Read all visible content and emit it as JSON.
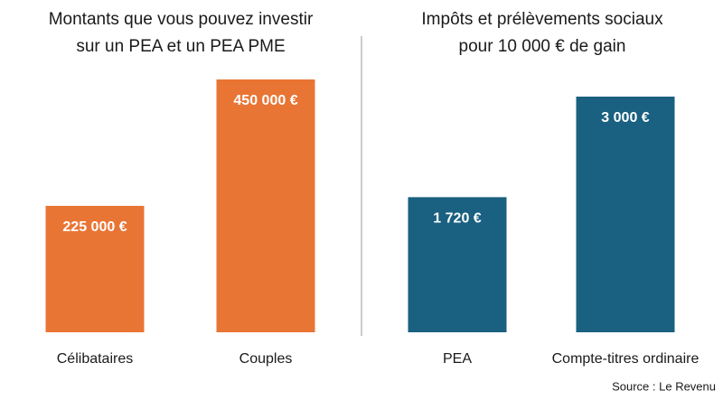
{
  "chart_data": [
    {
      "type": "bar",
      "title": [
        "Montants que vous pouvez investir",
        "sur un PEA et un PEA PME"
      ],
      "categories": [
        "Célibataires",
        "Couples"
      ],
      "values": [
        225000,
        450000
      ],
      "value_labels": [
        "225 000 €",
        "450 000 €"
      ],
      "color": "#e97534"
    },
    {
      "type": "bar",
      "title": [
        "Impôts et prélèvements sociaux",
        "pour 10 000 € de gain"
      ],
      "categories": [
        "PEA",
        "Compte-titres ordinaire"
      ],
      "values": [
        1720,
        3000
      ],
      "value_labels": [
        "1 720 €",
        "3 000 €"
      ],
      "color": "#1a6080"
    }
  ],
  "source": "Source : Le Revenu"
}
